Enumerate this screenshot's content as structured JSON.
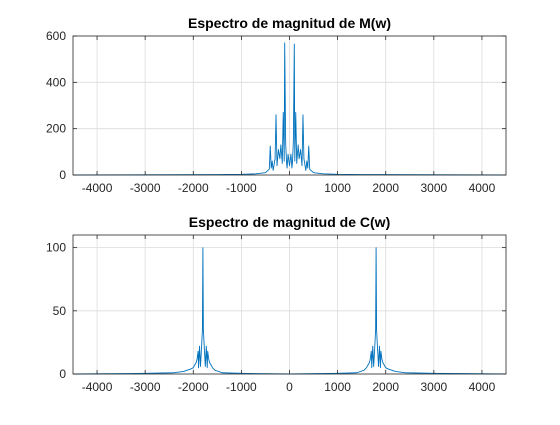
{
  "chart_data": [
    {
      "type": "line",
      "title": "Espectro de magnitud de M(w)",
      "xlabel": "",
      "ylabel": "",
      "xlim": [
        -4500,
        4500
      ],
      "ylim": [
        0,
        600
      ],
      "xticks": [
        -4000,
        -3000,
        -2000,
        -1000,
        0,
        1000,
        2000,
        3000,
        4000
      ],
      "yticks": [
        0,
        200,
        400,
        600
      ],
      "grid": true,
      "series": [
        {
          "color": "#0072BD",
          "x": [
            -4500,
            -1500,
            -1000,
            -700,
            -500,
            -420,
            -400,
            -380,
            -360,
            -340,
            -300,
            -280,
            -260,
            -230,
            -200,
            -180,
            -150,
            -130,
            -110,
            -100,
            -80,
            -60,
            -50,
            -30,
            0,
            30,
            50,
            60,
            80,
            100,
            110,
            130,
            150,
            180,
            200,
            230,
            260,
            280,
            300,
            340,
            360,
            380,
            400,
            420,
            500,
            700,
            1000,
            1500,
            4500
          ],
          "y": [
            0,
            2,
            3,
            5,
            10,
            25,
            125,
            30,
            60,
            20,
            70,
            260,
            40,
            110,
            70,
            130,
            50,
            270,
            60,
            570,
            140,
            50,
            30,
            90,
            40,
            90,
            30,
            50,
            140,
            565,
            60,
            270,
            50,
            130,
            70,
            110,
            40,
            260,
            70,
            20,
            60,
            30,
            125,
            25,
            10,
            5,
            3,
            2,
            0
          ]
        }
      ]
    },
    {
      "type": "line",
      "title": "Espectro de magnitud de C(w)",
      "xlabel": "",
      "ylabel": "",
      "xlim": [
        -4500,
        4500
      ],
      "ylim": [
        0,
        110
      ],
      "xticks": [
        -4000,
        -3000,
        -2000,
        -1000,
        0,
        1000,
        2000,
        3000,
        4000
      ],
      "yticks": [
        0,
        50,
        100
      ],
      "grid": true,
      "series": [
        {
          "color": "#0072BD",
          "x": [
            -4500,
            -3000,
            -2400,
            -2200,
            -2050,
            -2000,
            -1970,
            -1940,
            -1920,
            -1900,
            -1890,
            -1870,
            -1850,
            -1830,
            -1810,
            -1800,
            -1790,
            -1770,
            -1750,
            -1730,
            -1710,
            -1700,
            -1680,
            -1660,
            -1630,
            -1600,
            -1550,
            -1400,
            -1000,
            0,
            1000,
            1400,
            1550,
            1600,
            1630,
            1660,
            1680,
            1700,
            1710,
            1730,
            1750,
            1770,
            1790,
            1800,
            1810,
            1830,
            1850,
            1870,
            1890,
            1900,
            1920,
            1940,
            1970,
            2000,
            2050,
            2200,
            2400,
            3000,
            4500
          ],
          "y": [
            0,
            0.5,
            1,
            2,
            4,
            5,
            7,
            9,
            12,
            18,
            5,
            22,
            6,
            20,
            35,
            100,
            35,
            20,
            6,
            22,
            5,
            18,
            12,
            9,
            7,
            5,
            3,
            1,
            0.5,
            0,
            0.5,
            1,
            3,
            5,
            7,
            9,
            12,
            18,
            5,
            22,
            6,
            20,
            35,
            100,
            35,
            20,
            6,
            22,
            5,
            18,
            12,
            9,
            7,
            5,
            4,
            2,
            1,
            0.5,
            0
          ]
        }
      ]
    }
  ]
}
